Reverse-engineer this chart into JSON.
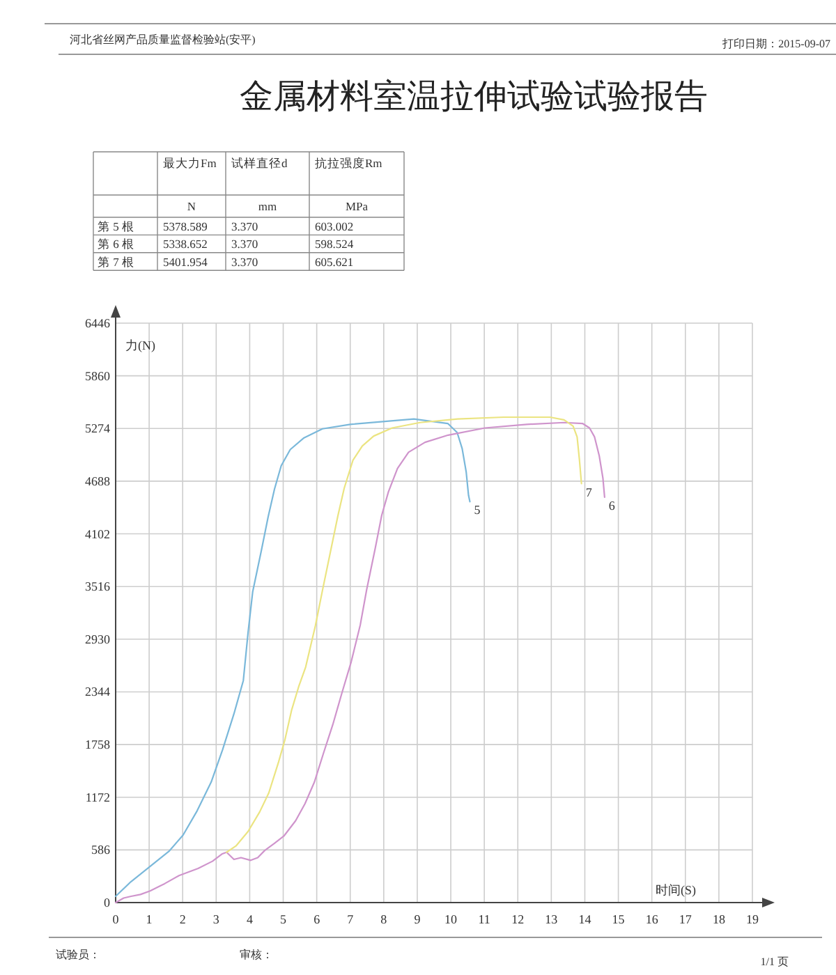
{
  "chart_data": [
    {
      "type": "other",
      "title": "金属材料室温拉伸试验试验报告",
      "annotations": [
        "河北省丝网产品质量监督检验站(安平)",
        "打印日期：2015-09-07"
      ],
      "categories": [
        "最大力Fm",
        "试样直径d",
        "抗拉强度Rm"
      ],
      "y_categories": [
        null,
        "第 5 根",
        "第 6 根",
        "第 7 根"
      ],
      "cell_labels": [
        [
          "N",
          "mm",
          "MPa"
        ],
        [
          "5378.589",
          "3.370",
          "603.002"
        ],
        [
          "5338.652",
          "3.370",
          "598.524"
        ],
        [
          "5401.954",
          "3.370",
          "605.621"
        ]
      ]
    },
    {
      "type": "line",
      "xlabel": "时间(S)",
      "ylabel": "力(N)",
      "xlim": [
        0,
        19
      ],
      "ylim": [
        0,
        6446
      ],
      "xticks": [
        0,
        1,
        2,
        3,
        4,
        5,
        6,
        7,
        8,
        9,
        10,
        11,
        12,
        13,
        14,
        15,
        16,
        17,
        18,
        19
      ],
      "yticks": [
        0,
        586,
        1172,
        1758,
        2344,
        2930,
        3516,
        4102,
        4688,
        5274,
        5860,
        6446
      ],
      "grid": true,
      "series": [
        {
          "name": "5",
          "color": "#7ab8da",
          "x": [
            0,
            0.45,
            1.02,
            1.59,
            2.01,
            2.43,
            2.85,
            3.19,
            3.53,
            3.81,
            3.95,
            4.09,
            4.35,
            4.55,
            4.74,
            4.94,
            5.21,
            5.62,
            6.17,
            7.0,
            7.97,
            8.9,
            9.91,
            10.19,
            10.34,
            10.46,
            10.53,
            10.57
          ],
          "values": [
            70,
            230,
            400,
            570,
            750,
            1020,
            1340,
            1700,
            2100,
            2470,
            3000,
            3460,
            3920,
            4290,
            4600,
            4860,
            5040,
            5170,
            5270,
            5320,
            5350,
            5380,
            5330,
            5230,
            5050,
            4790,
            4530,
            4460
          ]
        },
        {
          "name": "6",
          "color": "#cf94cc",
          "x": [
            0,
            0.24,
            0.46,
            0.74,
            1.03,
            1.46,
            1.89,
            2.46,
            2.89,
            3.17,
            3.31,
            3.53,
            3.74,
            4.03,
            4.24,
            4.45,
            4.74,
            5.02,
            5.37,
            5.65,
            5.93,
            6.2,
            6.48,
            6.75,
            7.03,
            7.3,
            7.49,
            7.75,
            7.94,
            8.14,
            8.41,
            8.74,
            9.23,
            9.92,
            11.02,
            12.27,
            13.38,
            13.93,
            14.14,
            14.29,
            14.43,
            14.54,
            14.59
          ],
          "values": [
            0,
            50,
            70,
            90,
            130,
            210,
            300,
            380,
            460,
            540,
            560,
            480,
            500,
            470,
            500,
            580,
            660,
            740,
            910,
            1100,
            1340,
            1660,
            1980,
            2330,
            2680,
            3090,
            3480,
            3950,
            4310,
            4570,
            4830,
            5010,
            5120,
            5200,
            5280,
            5320,
            5340,
            5330,
            5280,
            5180,
            4970,
            4720,
            4510
          ]
        },
        {
          "name": "7",
          "color": "#ebe481",
          "x": [
            3.31,
            3.59,
            3.95,
            4.3,
            4.57,
            4.85,
            5.05,
            5.25,
            5.46,
            5.67,
            5.96,
            6.17,
            6.43,
            6.63,
            6.82,
            7.08,
            7.36,
            7.7,
            8.25,
            9.08,
            10.2,
            11.58,
            12.96,
            13.38,
            13.65,
            13.77,
            13.84,
            13.9
          ],
          "values": [
            560,
            630,
            790,
            1010,
            1220,
            1550,
            1810,
            2140,
            2400,
            2620,
            3080,
            3470,
            3940,
            4300,
            4610,
            4920,
            5080,
            5190,
            5280,
            5340,
            5380,
            5400,
            5400,
            5370,
            5300,
            5180,
            4920,
            4660
          ]
        }
      ],
      "annotations": [
        "试验员：",
        "审核：",
        "1/1 页"
      ]
    }
  ]
}
